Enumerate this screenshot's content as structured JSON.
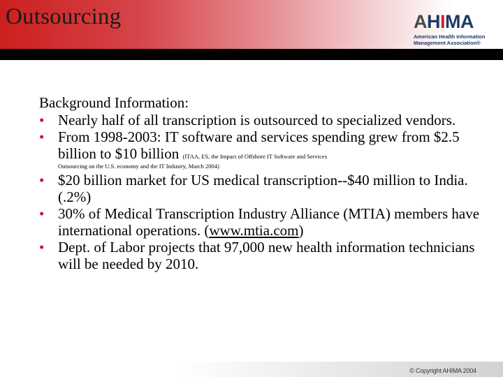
{
  "slide": {
    "title": "Outsourcing",
    "logo": {
      "name": "AHIMA",
      "subtitle_line1": "American Health Information",
      "subtitle_line2": "Management Association®"
    }
  },
  "content": {
    "heading": "Background Information:",
    "bullets": [
      {
        "text": "Nearly half of all transcription is outsourced to specialized vendors."
      },
      {
        "text": "From 1998-2003: IT software and services spending grew from $2.5 billion to $10 billion",
        "citation_part1": "(ITAA, ES, the Impact of Offshore IT Software and Services",
        "citation_part2": "Outsourcing on the U.S. economy and the IT Industry, March 2004)"
      },
      {
        "text": "$20 billion market for US medical transcription--$40 million to India.  (.2%)"
      },
      {
        "text_before_link": "30% of Medical Transcription Industry Alliance (MTIA) members have international operations. (",
        "link": "www.mtia.com",
        "text_after_link": ")"
      },
      {
        "text": "Dept. of Labor projects that 97,000 new health information technicians will be needed by 2010."
      }
    ]
  },
  "footer": {
    "copyright": "© Copyright AHIMA 2004"
  },
  "colors": {
    "header_red": "#cc1f1f",
    "bullet_red": "#c8102e",
    "logo_navy": "#1f3b66"
  }
}
